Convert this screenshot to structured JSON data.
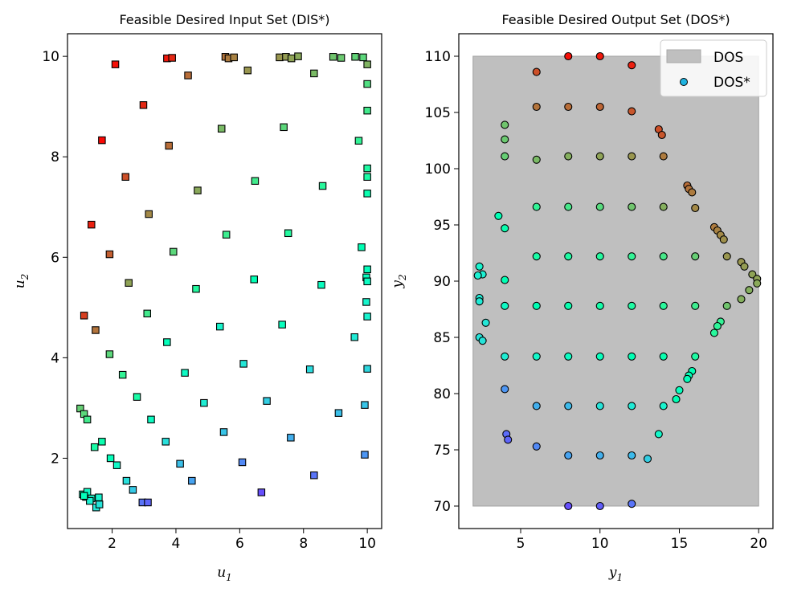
{
  "chart_data": [
    {
      "type": "scatter",
      "title": "Feasible Desired Input Set (DIS*)",
      "xlabel": "u",
      "xlabel_sub": "1",
      "ylabel": "u",
      "ylabel_sub": "2",
      "xlim": [
        0.6,
        10.45
      ],
      "ylim": [
        0.6,
        10.45
      ],
      "xticks": [
        2,
        4,
        6,
        8,
        10
      ],
      "yticks": [
        2,
        4,
        6,
        8,
        10
      ],
      "marker": "square",
      "points": [
        {
          "x": 2.1,
          "y": 9.84,
          "c": 0.98
        },
        {
          "x": 3.72,
          "y": 9.96,
          "c": 0.97
        },
        {
          "x": 3.88,
          "y": 9.97,
          "c": 0.95
        },
        {
          "x": 5.55,
          "y": 9.99,
          "c": 0.85
        },
        {
          "x": 5.65,
          "y": 9.96,
          "c": 0.84
        },
        {
          "x": 5.82,
          "y": 9.98,
          "c": 0.83
        },
        {
          "x": 7.25,
          "y": 9.98,
          "c": 0.8
        },
        {
          "x": 7.45,
          "y": 9.99,
          "c": 0.79
        },
        {
          "x": 7.62,
          "y": 9.96,
          "c": 0.78
        },
        {
          "x": 7.83,
          "y": 10.0,
          "c": 0.77
        },
        {
          "x": 8.93,
          "y": 9.99,
          "c": 0.72
        },
        {
          "x": 9.18,
          "y": 9.97,
          "c": 0.71
        },
        {
          "x": 9.62,
          "y": 9.99,
          "c": 0.69
        },
        {
          "x": 9.87,
          "y": 9.98,
          "c": 0.68
        },
        {
          "x": 10.0,
          "y": 9.84,
          "c": 0.75
        },
        {
          "x": 4.38,
          "y": 9.62,
          "c": 0.86
        },
        {
          "x": 6.25,
          "y": 9.72,
          "c": 0.8
        },
        {
          "x": 8.33,
          "y": 9.66,
          "c": 0.74
        },
        {
          "x": 10.0,
          "y": 9.45,
          "c": 0.66
        },
        {
          "x": 2.98,
          "y": 9.03,
          "c": 0.95
        },
        {
          "x": 10.0,
          "y": 8.92,
          "c": 0.63
        },
        {
          "x": 5.43,
          "y": 8.56,
          "c": 0.74
        },
        {
          "x": 7.38,
          "y": 8.59,
          "c": 0.68
        },
        {
          "x": 1.68,
          "y": 8.33,
          "c": 0.99
        },
        {
          "x": 9.73,
          "y": 8.32,
          "c": 0.6
        },
        {
          "x": 3.78,
          "y": 8.22,
          "c": 0.86
        },
        {
          "x": 10.0,
          "y": 7.77,
          "c": 0.56
        },
        {
          "x": 10.0,
          "y": 7.6,
          "c": 0.55
        },
        {
          "x": 2.42,
          "y": 7.6,
          "c": 0.9
        },
        {
          "x": 6.48,
          "y": 7.52,
          "c": 0.63
        },
        {
          "x": 8.6,
          "y": 7.42,
          "c": 0.58
        },
        {
          "x": 4.68,
          "y": 7.33,
          "c": 0.77
        },
        {
          "x": 10.0,
          "y": 7.27,
          "c": 0.52
        },
        {
          "x": 3.15,
          "y": 6.86,
          "c": 0.82
        },
        {
          "x": 1.35,
          "y": 6.65,
          "c": 0.96
        },
        {
          "x": 7.52,
          "y": 6.48,
          "c": 0.57
        },
        {
          "x": 5.58,
          "y": 6.45,
          "c": 0.62
        },
        {
          "x": 9.82,
          "y": 6.2,
          "c": 0.5
        },
        {
          "x": 3.92,
          "y": 6.11,
          "c": 0.68
        },
        {
          "x": 1.92,
          "y": 6.06,
          "c": 0.88
        },
        {
          "x": 10.0,
          "y": 5.76,
          "c": 0.47
        },
        {
          "x": 9.97,
          "y": 5.6,
          "c": 0.46
        },
        {
          "x": 10.0,
          "y": 5.52,
          "c": 0.45
        },
        {
          "x": 6.45,
          "y": 5.56,
          "c": 0.5
        },
        {
          "x": 2.52,
          "y": 5.49,
          "c": 0.78
        },
        {
          "x": 8.56,
          "y": 5.45,
          "c": 0.46
        },
        {
          "x": 4.63,
          "y": 5.37,
          "c": 0.57
        },
        {
          "x": 9.97,
          "y": 5.11,
          "c": 0.41
        },
        {
          "x": 3.1,
          "y": 4.88,
          "c": 0.63
        },
        {
          "x": 1.12,
          "y": 4.84,
          "c": 0.92
        },
        {
          "x": 10.0,
          "y": 4.82,
          "c": 0.4
        },
        {
          "x": 7.33,
          "y": 4.66,
          "c": 0.47
        },
        {
          "x": 5.38,
          "y": 4.62,
          "c": 0.41
        },
        {
          "x": 1.48,
          "y": 4.55,
          "c": 0.85
        },
        {
          "x": 9.6,
          "y": 4.41,
          "c": 0.37
        },
        {
          "x": 3.72,
          "y": 4.31,
          "c": 0.48
        },
        {
          "x": 1.92,
          "y": 4.07,
          "c": 0.68
        },
        {
          "x": 6.12,
          "y": 3.88,
          "c": 0.36
        },
        {
          "x": 10.0,
          "y": 3.78,
          "c": 0.32
        },
        {
          "x": 8.2,
          "y": 3.77,
          "c": 0.33
        },
        {
          "x": 4.28,
          "y": 3.7,
          "c": 0.44
        },
        {
          "x": 2.33,
          "y": 3.66,
          "c": 0.6
        },
        {
          "x": 2.78,
          "y": 3.22,
          "c": 0.55
        },
        {
          "x": 6.85,
          "y": 3.14,
          "c": 0.3
        },
        {
          "x": 4.88,
          "y": 3.1,
          "c": 0.38
        },
        {
          "x": 9.92,
          "y": 3.06,
          "c": 0.28
        },
        {
          "x": 1.0,
          "y": 2.99,
          "c": 0.7
        },
        {
          "x": 1.12,
          "y": 2.88,
          "c": 0.68
        },
        {
          "x": 9.1,
          "y": 2.9,
          "c": 0.27
        },
        {
          "x": 1.22,
          "y": 2.77,
          "c": 0.63
        },
        {
          "x": 3.22,
          "y": 2.77,
          "c": 0.45
        },
        {
          "x": 5.5,
          "y": 2.52,
          "c": 0.28
        },
        {
          "x": 7.6,
          "y": 2.41,
          "c": 0.24
        },
        {
          "x": 3.68,
          "y": 2.33,
          "c": 0.34
        },
        {
          "x": 1.68,
          "y": 2.33,
          "c": 0.52
        },
        {
          "x": 1.45,
          "y": 2.22,
          "c": 0.55
        },
        {
          "x": 9.92,
          "y": 2.07,
          "c": 0.2
        },
        {
          "x": 1.95,
          "y": 2.0,
          "c": 0.48
        },
        {
          "x": 2.15,
          "y": 1.86,
          "c": 0.43
        },
        {
          "x": 6.08,
          "y": 1.92,
          "c": 0.18
        },
        {
          "x": 4.13,
          "y": 1.89,
          "c": 0.27
        },
        {
          "x": 8.33,
          "y": 1.66,
          "c": 0.15
        },
        {
          "x": 2.45,
          "y": 1.55,
          "c": 0.34
        },
        {
          "x": 4.5,
          "y": 1.55,
          "c": 0.22
        },
        {
          "x": 2.65,
          "y": 1.37,
          "c": 0.29
        },
        {
          "x": 6.68,
          "y": 1.32,
          "c": 0.1
        },
        {
          "x": 1.08,
          "y": 1.28,
          "c": 0.46
        },
        {
          "x": 1.18,
          "y": 1.23,
          "c": 0.45
        },
        {
          "x": 1.22,
          "y": 1.33,
          "c": 0.44
        },
        {
          "x": 1.35,
          "y": 1.2,
          "c": 0.42
        },
        {
          "x": 1.58,
          "y": 1.22,
          "c": 0.4
        },
        {
          "x": 1.3,
          "y": 1.15,
          "c": 0.39
        },
        {
          "x": 1.5,
          "y": 1.02,
          "c": 0.36
        },
        {
          "x": 1.6,
          "y": 1.08,
          "c": 0.35
        },
        {
          "x": 1.12,
          "y": 1.25,
          "c": 0.48
        },
        {
          "x": 2.95,
          "y": 1.12,
          "c": 0.15
        },
        {
          "x": 3.12,
          "y": 1.12,
          "c": 0.13
        }
      ]
    },
    {
      "type": "scatter",
      "title": "Feasible Desired Output Set (DOS*)",
      "xlabel": "y",
      "xlabel_sub": "1",
      "ylabel": "y",
      "ylabel_sub": "2",
      "xlim": [
        1.1,
        20.9
      ],
      "ylim": [
        68,
        112
      ],
      "xticks": [
        5,
        10,
        15,
        20
      ],
      "yticks": [
        70,
        75,
        80,
        85,
        90,
        95,
        100,
        105,
        110
      ],
      "region": {
        "x": [
          2,
          20
        ],
        "y": [
          70,
          110
        ],
        "label": "DOS",
        "color": "#bfbfbf"
      },
      "legend": {
        "position": "top-right",
        "entries": [
          "DOS",
          "DOS*"
        ]
      },
      "marker": "circle",
      "points": [
        {
          "x": 8,
          "y": 110,
          "c": 0.98
        },
        {
          "x": 10,
          "y": 110,
          "c": 0.97
        },
        {
          "x": 12,
          "y": 109.2,
          "c": 0.96
        },
        {
          "x": 6,
          "y": 108.6,
          "c": 0.9
        },
        {
          "x": 6,
          "y": 105.5,
          "c": 0.85
        },
        {
          "x": 8,
          "y": 105.5,
          "c": 0.86
        },
        {
          "x": 10,
          "y": 105.5,
          "c": 0.87
        },
        {
          "x": 12,
          "y": 105.1,
          "c": 0.89
        },
        {
          "x": 13.7,
          "y": 103.5,
          "c": 0.9
        },
        {
          "x": 13.9,
          "y": 103.0,
          "c": 0.89
        },
        {
          "x": 4,
          "y": 103.9,
          "c": 0.72
        },
        {
          "x": 4,
          "y": 102.6,
          "c": 0.71
        },
        {
          "x": 4,
          "y": 101.1,
          "c": 0.7
        },
        {
          "x": 6,
          "y": 100.8,
          "c": 0.74
        },
        {
          "x": 8,
          "y": 101.1,
          "c": 0.76
        },
        {
          "x": 10,
          "y": 101.1,
          "c": 0.78
        },
        {
          "x": 12,
          "y": 101.1,
          "c": 0.8
        },
        {
          "x": 14,
          "y": 101.1,
          "c": 0.84
        },
        {
          "x": 15.5,
          "y": 98.5,
          "c": 0.86
        },
        {
          "x": 15.6,
          "y": 98.2,
          "c": 0.85
        },
        {
          "x": 15.8,
          "y": 97.9,
          "c": 0.84
        },
        {
          "x": 16,
          "y": 96.5,
          "c": 0.82
        },
        {
          "x": 6,
          "y": 96.6,
          "c": 0.6
        },
        {
          "x": 8,
          "y": 96.6,
          "c": 0.64
        },
        {
          "x": 10,
          "y": 96.6,
          "c": 0.67
        },
        {
          "x": 12,
          "y": 96.6,
          "c": 0.72
        },
        {
          "x": 14,
          "y": 96.6,
          "c": 0.76
        },
        {
          "x": 3.6,
          "y": 95.8,
          "c": 0.5
        },
        {
          "x": 4,
          "y": 94.7,
          "c": 0.52
        },
        {
          "x": 17.2,
          "y": 94.8,
          "c": 0.84
        },
        {
          "x": 17.4,
          "y": 94.5,
          "c": 0.83
        },
        {
          "x": 17.6,
          "y": 94.1,
          "c": 0.82
        },
        {
          "x": 17.8,
          "y": 93.7,
          "c": 0.81
        },
        {
          "x": 6,
          "y": 92.2,
          "c": 0.55
        },
        {
          "x": 8,
          "y": 92.2,
          "c": 0.56
        },
        {
          "x": 10,
          "y": 92.2,
          "c": 0.57
        },
        {
          "x": 12,
          "y": 92.2,
          "c": 0.6
        },
        {
          "x": 14,
          "y": 92.2,
          "c": 0.64
        },
        {
          "x": 16,
          "y": 92.2,
          "c": 0.7
        },
        {
          "x": 18,
          "y": 92.2,
          "c": 0.8
        },
        {
          "x": 18.9,
          "y": 91.7,
          "c": 0.8
        },
        {
          "x": 19.1,
          "y": 91.3,
          "c": 0.79
        },
        {
          "x": 19.6,
          "y": 90.6,
          "c": 0.78
        },
        {
          "x": 19.9,
          "y": 90.2,
          "c": 0.78
        },
        {
          "x": 19.9,
          "y": 89.8,
          "c": 0.77
        },
        {
          "x": 19.4,
          "y": 89.2,
          "c": 0.76
        },
        {
          "x": 18.9,
          "y": 88.4,
          "c": 0.76
        },
        {
          "x": 18,
          "y": 87.8,
          "c": 0.72
        },
        {
          "x": 2.4,
          "y": 91.3,
          "c": 0.4
        },
        {
          "x": 2.6,
          "y": 90.6,
          "c": 0.39
        },
        {
          "x": 2.3,
          "y": 90.5,
          "c": 0.39
        },
        {
          "x": 4,
          "y": 90.1,
          "c": 0.5
        },
        {
          "x": 2.4,
          "y": 88.5,
          "c": 0.37
        },
        {
          "x": 2.4,
          "y": 88.2,
          "c": 0.37
        },
        {
          "x": 4,
          "y": 87.8,
          "c": 0.44
        },
        {
          "x": 6,
          "y": 87.8,
          "c": 0.5
        },
        {
          "x": 8,
          "y": 87.8,
          "c": 0.52
        },
        {
          "x": 10,
          "y": 87.8,
          "c": 0.54
        },
        {
          "x": 12,
          "y": 87.8,
          "c": 0.56
        },
        {
          "x": 14,
          "y": 87.8,
          "c": 0.58
        },
        {
          "x": 16,
          "y": 87.8,
          "c": 0.62
        },
        {
          "x": 17.6,
          "y": 86.4,
          "c": 0.6
        },
        {
          "x": 17.4,
          "y": 86.0,
          "c": 0.59
        },
        {
          "x": 17.2,
          "y": 85.4,
          "c": 0.58
        },
        {
          "x": 2.8,
          "y": 86.3,
          "c": 0.36
        },
        {
          "x": 2.4,
          "y": 85.0,
          "c": 0.35
        },
        {
          "x": 2.6,
          "y": 84.7,
          "c": 0.35
        },
        {
          "x": 4,
          "y": 83.3,
          "c": 0.38
        },
        {
          "x": 6,
          "y": 83.3,
          "c": 0.42
        },
        {
          "x": 8,
          "y": 83.3,
          "c": 0.45
        },
        {
          "x": 10,
          "y": 83.3,
          "c": 0.47
        },
        {
          "x": 12,
          "y": 83.3,
          "c": 0.5
        },
        {
          "x": 14,
          "y": 83.3,
          "c": 0.52
        },
        {
          "x": 16,
          "y": 83.3,
          "c": 0.56
        },
        {
          "x": 15.8,
          "y": 82.0,
          "c": 0.5
        },
        {
          "x": 15.6,
          "y": 81.6,
          "c": 0.49
        },
        {
          "x": 15.5,
          "y": 81.3,
          "c": 0.48
        },
        {
          "x": 15.0,
          "y": 80.3,
          "c": 0.47
        },
        {
          "x": 14.8,
          "y": 79.5,
          "c": 0.5
        },
        {
          "x": 4,
          "y": 80.4,
          "c": 0.2
        },
        {
          "x": 6,
          "y": 78.9,
          "c": 0.24
        },
        {
          "x": 8,
          "y": 78.9,
          "c": 0.26
        },
        {
          "x": 10,
          "y": 78.9,
          "c": 0.35
        },
        {
          "x": 12,
          "y": 78.9,
          "c": 0.37
        },
        {
          "x": 14,
          "y": 78.9,
          "c": 0.4
        },
        {
          "x": 13.7,
          "y": 76.4,
          "c": 0.42
        },
        {
          "x": 4.1,
          "y": 76.4,
          "c": 0.14
        },
        {
          "x": 4.2,
          "y": 75.9,
          "c": 0.13
        },
        {
          "x": 6,
          "y": 75.3,
          "c": 0.18
        },
        {
          "x": 8,
          "y": 74.5,
          "c": 0.22
        },
        {
          "x": 10,
          "y": 74.5,
          "c": 0.24
        },
        {
          "x": 12,
          "y": 74.5,
          "c": 0.26
        },
        {
          "x": 13,
          "y": 74.2,
          "c": 0.3
        },
        {
          "x": 8,
          "y": 70,
          "c": 0.1
        },
        {
          "x": 10,
          "y": 70,
          "c": 0.12
        },
        {
          "x": 12,
          "y": 70.2,
          "c": 0.15
        }
      ]
    }
  ]
}
